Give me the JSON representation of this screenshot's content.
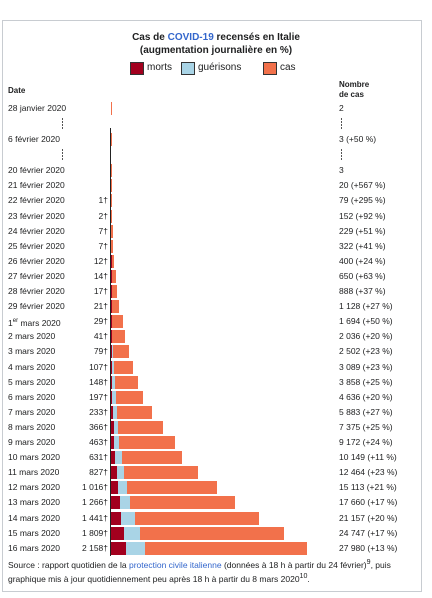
{
  "header": {
    "title_pre": "Cas de ",
    "title_highlight": "COVID-19",
    "title_post": " recensés en Italie",
    "subtitle": "(augmentation journalière en %)"
  },
  "legend": {
    "deaths_label": "morts",
    "recoveries_label": "guérisons",
    "cases_label": "cas"
  },
  "columns": {
    "date_header": "Date",
    "cases_header_line1": "Nombre",
    "cases_header_line2": "de cas"
  },
  "colors": {
    "deaths": "#a2001e",
    "recoveries": "#a9d4e6",
    "cases": "#f2714b"
  },
  "source": {
    "prefix": "Source : rapport quotidien de la ",
    "link": "protection civile italienne",
    "mid": " (données à 18 h à partir du 24 février)",
    "ref1": "9",
    "suffix": ", puis graphique mis à jour quotidiennement peu après 18 h à partir du 8 mars 2020",
    "ref2": "10",
    "end": "."
  },
  "chart_data": {
    "type": "bar",
    "orientation": "horizontal",
    "stacked": true,
    "title": "Cas de COVID-19 recensés en Italie",
    "subtitle": "(augmentation journalière en %)",
    "xlabel": "",
    "ylabel": "Date",
    "series_names": [
      "morts",
      "guérisons",
      "cas"
    ],
    "rows": [
      {
        "date": "28 janvier 2020",
        "cases_label": "2",
        "total": 2,
        "deaths": 0,
        "recovered": 0,
        "deaths_label": ""
      },
      {
        "gap": true
      },
      {
        "date": "6 février 2020",
        "cases_label": "3 (+50 %)",
        "total": 3,
        "deaths": 0,
        "recovered": 0,
        "deaths_label": ""
      },
      {
        "gap": true
      },
      {
        "date": "20 février 2020",
        "cases_label": "3",
        "total": 3,
        "deaths": 0,
        "recovered": 0,
        "deaths_label": ""
      },
      {
        "date": "21 février 2020",
        "cases_label": "20 (+567 %)",
        "total": 20,
        "deaths": 0,
        "recovered": 0,
        "deaths_label": ""
      },
      {
        "date": "22 février 2020",
        "cases_label": "79 (+295 %)",
        "total": 79,
        "deaths": 1,
        "recovered": 0,
        "deaths_label": "1†"
      },
      {
        "date": "23 février 2020",
        "cases_label": "152 (+92 %)",
        "total": 152,
        "deaths": 2,
        "recovered": 0,
        "deaths_label": "2†"
      },
      {
        "date": "24 février 2020",
        "cases_label": "229 (+51 %)",
        "total": 229,
        "deaths": 7,
        "recovered": 1,
        "deaths_label": "7†"
      },
      {
        "date": "25 février 2020",
        "cases_label": "322 (+41 %)",
        "total": 322,
        "deaths": 7,
        "recovered": 1,
        "deaths_label": "7†"
      },
      {
        "date": "26 février 2020",
        "cases_label": "400 (+24 %)",
        "total": 400,
        "deaths": 12,
        "recovered": 3,
        "deaths_label": "12†"
      },
      {
        "date": "27 février 2020",
        "cases_label": "650 (+63 %)",
        "total": 650,
        "deaths": 14,
        "recovered": 45,
        "deaths_label": "14†"
      },
      {
        "date": "28 février 2020",
        "cases_label": "888 (+37 %)",
        "total": 888,
        "deaths": 17,
        "recovered": 46,
        "deaths_label": "17†"
      },
      {
        "date": "29 février 2020",
        "cases_label": "1 128 (+27 %)",
        "total": 1128,
        "deaths": 21,
        "recovered": 46,
        "deaths_label": "21†"
      },
      {
        "date": "1er mars 2020",
        "cases_label": "1 694 (+50 %)",
        "total": 1694,
        "deaths": 29,
        "recovered": 83,
        "deaths_label": "29†"
      },
      {
        "date": "2 mars 2020",
        "cases_label": "2 036 (+20 %)",
        "total": 2036,
        "deaths": 41,
        "recovered": 149,
        "deaths_label": "41†"
      },
      {
        "date": "3 mars 2020",
        "cases_label": "2 502 (+23 %)",
        "total": 2502,
        "deaths": 79,
        "recovered": 160,
        "deaths_label": "79†"
      },
      {
        "date": "4 mars 2020",
        "cases_label": "3 089 (+23 %)",
        "total": 3089,
        "deaths": 107,
        "recovered": 276,
        "deaths_label": "107†"
      },
      {
        "date": "5 mars 2020",
        "cases_label": "3 858 (+25 %)",
        "total": 3858,
        "deaths": 148,
        "recovered": 414,
        "deaths_label": "148†"
      },
      {
        "date": "6 mars 2020",
        "cases_label": "4 636 (+20 %)",
        "total": 4636,
        "deaths": 197,
        "recovered": 523,
        "deaths_label": "197†"
      },
      {
        "date": "7 mars 2020",
        "cases_label": "5 883 (+27 %)",
        "total": 5883,
        "deaths": 233,
        "recovered": 589,
        "deaths_label": "233†"
      },
      {
        "date": "8 mars 2020",
        "cases_label": "7 375 (+25 %)",
        "total": 7375,
        "deaths": 366,
        "recovered": 622,
        "deaths_label": "366†"
      },
      {
        "date": "9 mars 2020",
        "cases_label": "9 172 (+24 %)",
        "total": 9172,
        "deaths": 463,
        "recovered": 724,
        "deaths_label": "463†"
      },
      {
        "date": "10 mars 2020",
        "cases_label": "10 149 (+11 %)",
        "total": 10149,
        "deaths": 631,
        "recovered": 1004,
        "deaths_label": "631†"
      },
      {
        "date": "11 mars 2020",
        "cases_label": "12 464 (+23 %)",
        "total": 12464,
        "deaths": 827,
        "recovered": 1045,
        "deaths_label": "827†"
      },
      {
        "date": "12 mars 2020",
        "cases_label": "15 113 (+21 %)",
        "total": 15113,
        "deaths": 1016,
        "recovered": 1258,
        "deaths_label": "1 016†"
      },
      {
        "date": "13 mars 2020",
        "cases_label": "17 660 (+17 %)",
        "total": 17660,
        "deaths": 1266,
        "recovered": 1439,
        "deaths_label": "1 266†"
      },
      {
        "date": "14 mars 2020",
        "cases_label": "21 157 (+20 %)",
        "total": 21157,
        "deaths": 1441,
        "recovered": 1966,
        "deaths_label": "1 441†"
      },
      {
        "date": "15 mars 2020",
        "cases_label": "24 747 (+17 %)",
        "total": 24747,
        "deaths": 1809,
        "recovered": 2335,
        "deaths_label": "1 809†"
      },
      {
        "date": "16 mars 2020",
        "cases_label": "27 980 (+13 %)",
        "total": 27980,
        "deaths": 2158,
        "recovered": 2749,
        "deaths_label": "2 158†"
      }
    ]
  }
}
